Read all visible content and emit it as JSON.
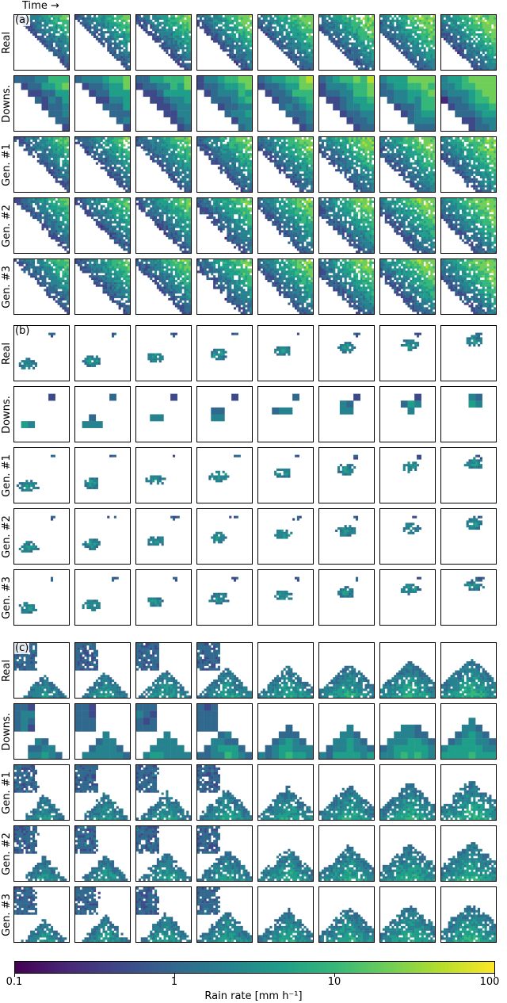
{
  "figure": {
    "time_label": "Time →",
    "panels": [
      {
        "letter": "(a)",
        "pattern": "diagonal",
        "rows": [
          "Real",
          "Downs.",
          "Gen. #1",
          "Gen. #2",
          "Gen. #3"
        ]
      },
      {
        "letter": "(b)",
        "pattern": "scattered",
        "rows": [
          "Real",
          "Downs.",
          "Gen. #1",
          "Gen. #2",
          "Gen. #3"
        ]
      },
      {
        "letter": "(c)",
        "pattern": "dome",
        "rows": [
          "Real",
          "Downs.",
          "Gen. #1",
          "Gen. #2",
          "Gen. #3"
        ]
      }
    ],
    "time_steps": 8
  },
  "colorbar": {
    "title": "Rain rate [mm h⁻¹]",
    "ticks": [
      "0.1",
      "1",
      "10",
      "100"
    ],
    "scale": "log",
    "range": [
      0.1,
      100
    ],
    "colormap": "viridis",
    "colors": [
      "#440154",
      "#482878",
      "#3e4989",
      "#31688e",
      "#26828e",
      "#1f9e89",
      "#35b779",
      "#6ece58",
      "#b5de2b",
      "#fde725"
    ]
  }
}
